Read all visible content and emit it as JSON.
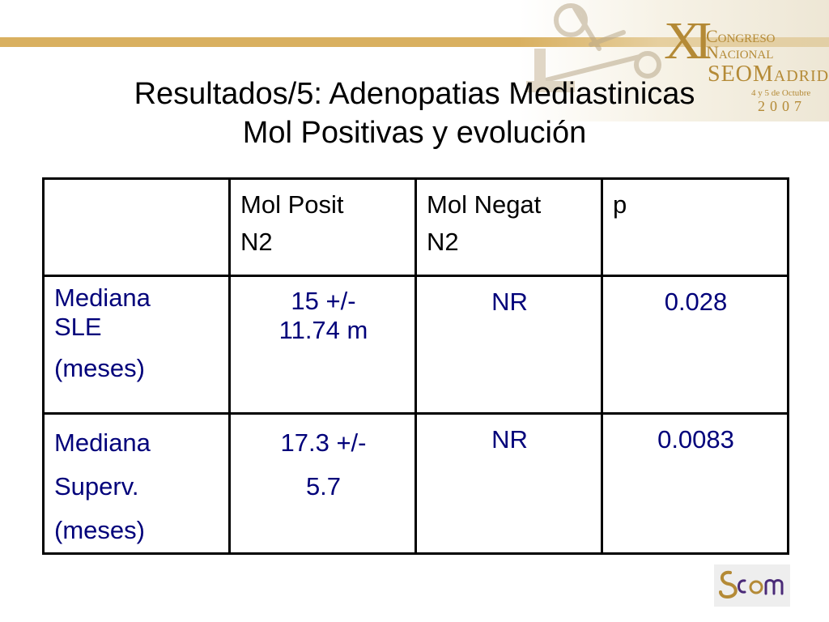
{
  "header": {
    "congress": {
      "numeral": "XI",
      "line1": "Congreso",
      "line2": "Nacional",
      "line3": "SEOMadrid",
      "dates": "4 y 5 de Octubre",
      "year": "2007"
    }
  },
  "title": {
    "line1": "Resultados/5: Adenopatias Mediastinicas",
    "line2": "Mol Positivas y evolución"
  },
  "table": {
    "header": {
      "col1": [
        "Mol Posit",
        "N2"
      ],
      "col2": [
        "Mol Negat",
        "N2"
      ],
      "col3": [
        "p"
      ]
    },
    "rows": [
      {
        "label": [
          "Mediana",
          "SLE",
          "(meses)"
        ],
        "mol_posit": [
          "15 +/-",
          "11.74 m"
        ],
        "mol_negat": "NR",
        "p": "0.028"
      },
      {
        "label": [
          "Mediana",
          "Superv.",
          "(meses)"
        ],
        "mol_posit": [
          "17.3 +/-",
          "5.7"
        ],
        "mol_negat": "NR",
        "p": "0.0083"
      }
    ]
  },
  "colors": {
    "accent_bar": "#d9b060",
    "value_text": "#00007a",
    "logo_gold": "#b48a36",
    "logo_purple": "#4a2a78"
  }
}
